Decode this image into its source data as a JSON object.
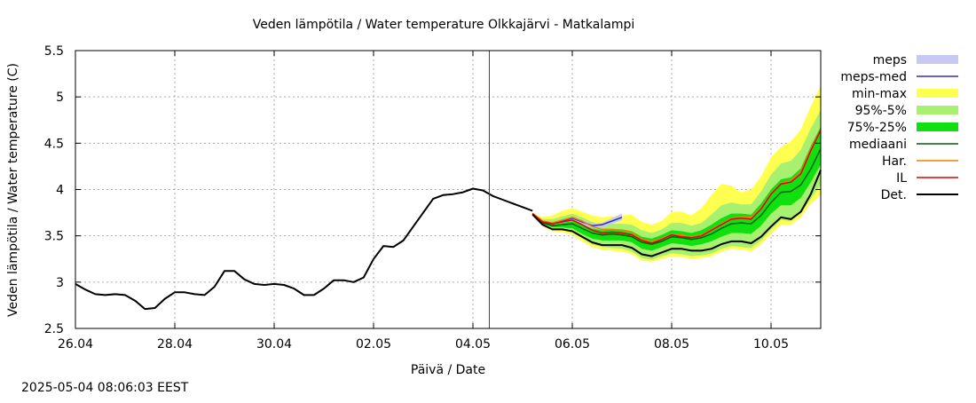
{
  "chart_data": {
    "type": "line",
    "title": "Veden lämpötila / Water temperature Olkkajärvi - Matkalampi",
    "xlabel": "Päivä / Date",
    "ylabel": "Veden lämpötila / Water temperature (C)",
    "x_range_days": [
      0,
      15
    ],
    "x_ticks": [
      {
        "day": 0,
        "label": "26.04"
      },
      {
        "day": 2,
        "label": "28.04"
      },
      {
        "day": 4,
        "label": "30.04"
      },
      {
        "day": 6,
        "label": "02.05"
      },
      {
        "day": 8,
        "label": "04.05"
      },
      {
        "day": 10,
        "label": "06.05"
      },
      {
        "day": 12,
        "label": "08.05"
      },
      {
        "day": 14,
        "label": "10.05"
      }
    ],
    "ylim": [
      2.5,
      5.5
    ],
    "y_ticks": [
      "2.5",
      "3",
      "3.5",
      "4",
      "4.5",
      "5",
      "5.5"
    ],
    "grid": true,
    "legend_position": "right",
    "current_time_day": 8.33,
    "current_time_color": "#e00000",
    "legend": [
      {
        "label": "meps",
        "kind": "band",
        "color": "#c8c8f5"
      },
      {
        "label": "meps-med",
        "kind": "line",
        "color": "#3030c0"
      },
      {
        "label": "min-max",
        "kind": "band",
        "color": "#ffff50"
      },
      {
        "label": "95%-5%",
        "kind": "band",
        "color": "#a8f070"
      },
      {
        "label": "75%-25%",
        "kind": "band",
        "color": "#10e010"
      },
      {
        "label": "mediaani",
        "kind": "line",
        "color": "#006000"
      },
      {
        "label": "Har.",
        "kind": "line",
        "color": "#f08000"
      },
      {
        "label": "IL",
        "kind": "line",
        "color": "#e00000"
      },
      {
        "label": "Det.",
        "kind": "line",
        "color": "#000000"
      }
    ],
    "observed": {
      "x": [
        0,
        0.2,
        0.4,
        0.6,
        0.8,
        1.0,
        1.2,
        1.4,
        1.6,
        1.8,
        2.0,
        2.2,
        2.4,
        2.6,
        2.8,
        3.0,
        3.2,
        3.4,
        3.6,
        3.8,
        4.0,
        4.2,
        4.4,
        4.6,
        4.8,
        5.0,
        5.2,
        5.4,
        5.6,
        5.8,
        6.0,
        6.2,
        6.4,
        6.6,
        6.8,
        7.0,
        7.2,
        7.4,
        7.6,
        7.8,
        8.0,
        8.2,
        8.4,
        8.6,
        8.8,
        9.0,
        9.2
      ],
      "y": [
        2.98,
        2.92,
        2.87,
        2.86,
        2.87,
        2.86,
        2.8,
        2.71,
        2.72,
        2.82,
        2.89,
        2.89,
        2.87,
        2.86,
        2.95,
        3.12,
        3.12,
        3.03,
        2.98,
        2.97,
        2.98,
        2.97,
        2.93,
        2.86,
        2.86,
        2.93,
        3.02,
        3.02,
        3.0,
        3.05,
        3.25,
        3.39,
        3.38,
        3.45,
        3.6,
        3.75,
        3.9,
        3.94,
        3.95,
        3.97,
        4.01,
        3.99,
        3.93,
        3.89,
        3.85,
        3.81,
        3.77
      ]
    },
    "forecast_x": [
      9.2,
      9.4,
      9.6,
      9.8,
      10.0,
      10.2,
      10.4,
      10.6,
      10.8,
      11.0,
      11.2,
      11.4,
      11.6,
      11.8,
      12.0,
      12.2,
      12.4,
      12.6,
      12.8,
      13.0,
      13.2,
      13.4,
      13.6,
      13.8,
      14.0,
      14.2,
      14.4,
      14.6,
      14.8,
      15.0
    ],
    "series": [
      {
        "name": "Det.",
        "y": [
          3.73,
          3.62,
          3.57,
          3.57,
          3.55,
          3.49,
          3.43,
          3.4,
          3.4,
          3.4,
          3.37,
          3.3,
          3.28,
          3.32,
          3.36,
          3.36,
          3.34,
          3.34,
          3.36,
          3.41,
          3.44,
          3.44,
          3.42,
          3.49,
          3.6,
          3.7,
          3.68,
          3.76,
          3.95,
          4.21
        ]
      },
      {
        "name": "mediaani",
        "y": [
          3.74,
          3.64,
          3.61,
          3.62,
          3.63,
          3.58,
          3.53,
          3.51,
          3.52,
          3.51,
          3.49,
          3.43,
          3.41,
          3.44,
          3.49,
          3.48,
          3.46,
          3.48,
          3.52,
          3.58,
          3.63,
          3.64,
          3.63,
          3.72,
          3.86,
          3.97,
          3.98,
          4.05,
          4.22,
          4.44
        ]
      },
      {
        "name": "IL",
        "y": [
          3.74,
          3.65,
          3.63,
          3.65,
          3.67,
          3.62,
          3.56,
          3.53,
          3.54,
          3.53,
          3.51,
          3.45,
          3.42,
          3.46,
          3.51,
          3.49,
          3.48,
          3.5,
          3.56,
          3.62,
          3.68,
          3.69,
          3.68,
          3.79,
          3.95,
          4.06,
          4.08,
          4.17,
          4.42,
          4.64
        ]
      },
      {
        "name": "Har.",
        "y": [
          3.74,
          3.66,
          3.64,
          3.67,
          3.7,
          3.66,
          3.6,
          3.57,
          3.57,
          3.56,
          3.54,
          3.46,
          3.44,
          3.47,
          3.52,
          3.51,
          3.49,
          3.51,
          3.57,
          3.63,
          3.69,
          3.7,
          3.7,
          3.8,
          3.96,
          4.07,
          4.1,
          4.19,
          4.44,
          4.65
        ]
      },
      {
        "name": "meps-med",
        "y": [
          3.74,
          3.65,
          3.63,
          3.66,
          3.69,
          3.65,
          3.61,
          3.62,
          3.66,
          3.7
        ]
      }
    ],
    "bands": [
      {
        "name": "min-max",
        "lower": [
          3.73,
          3.6,
          3.55,
          3.54,
          3.51,
          3.44,
          3.38,
          3.35,
          3.34,
          3.33,
          3.3,
          3.23,
          3.22,
          3.25,
          3.28,
          3.27,
          3.25,
          3.26,
          3.28,
          3.33,
          3.36,
          3.35,
          3.33,
          3.41,
          3.52,
          3.62,
          3.62,
          3.7,
          3.85,
          3.94
        ],
        "upper": [
          3.75,
          3.7,
          3.72,
          3.77,
          3.8,
          3.76,
          3.72,
          3.7,
          3.71,
          3.72,
          3.73,
          3.65,
          3.62,
          3.66,
          3.76,
          3.76,
          3.72,
          3.8,
          3.94,
          4.06,
          4.04,
          3.97,
          4.0,
          4.14,
          4.35,
          4.46,
          4.52,
          4.65,
          4.9,
          5.12
        ]
      },
      {
        "name": "95%-5%",
        "lower": [
          3.74,
          3.62,
          3.57,
          3.56,
          3.54,
          3.47,
          3.41,
          3.38,
          3.37,
          3.36,
          3.33,
          3.26,
          3.24,
          3.28,
          3.31,
          3.3,
          3.28,
          3.29,
          3.31,
          3.36,
          3.39,
          3.38,
          3.37,
          3.45,
          3.57,
          3.67,
          3.66,
          3.74,
          3.9,
          4.05
        ],
        "upper": [
          3.74,
          3.68,
          3.68,
          3.71,
          3.74,
          3.7,
          3.65,
          3.62,
          3.63,
          3.63,
          3.62,
          3.56,
          3.53,
          3.57,
          3.64,
          3.64,
          3.61,
          3.64,
          3.73,
          3.83,
          3.86,
          3.84,
          3.84,
          3.98,
          4.16,
          4.28,
          4.31,
          4.43,
          4.66,
          4.86
        ]
      },
      {
        "name": "75%-25%",
        "lower": [
          3.74,
          3.63,
          3.59,
          3.59,
          3.58,
          3.52,
          3.47,
          3.45,
          3.45,
          3.45,
          3.43,
          3.36,
          3.34,
          3.38,
          3.42,
          3.41,
          3.39,
          3.41,
          3.44,
          3.49,
          3.53,
          3.53,
          3.52,
          3.61,
          3.74,
          3.83,
          3.83,
          3.91,
          4.08,
          4.27
        ],
        "upper": [
          3.74,
          3.66,
          3.64,
          3.66,
          3.68,
          3.64,
          3.58,
          3.56,
          3.57,
          3.57,
          3.55,
          3.49,
          3.47,
          3.51,
          3.56,
          3.55,
          3.53,
          3.56,
          3.62,
          3.69,
          3.74,
          3.74,
          3.73,
          3.85,
          4.0,
          4.11,
          4.13,
          4.23,
          4.47,
          4.68
        ]
      },
      {
        "name": "meps",
        "lower": [
          3.74,
          3.64,
          3.62,
          3.64,
          3.66,
          3.62,
          3.58,
          3.59,
          3.63,
          3.67
        ],
        "upper": [
          3.74,
          3.66,
          3.64,
          3.67,
          3.7,
          3.67,
          3.63,
          3.64,
          3.69,
          3.74
        ]
      }
    ]
  },
  "footer": {
    "timestamp": "2025-05-04 08:06:03 EEST"
  }
}
